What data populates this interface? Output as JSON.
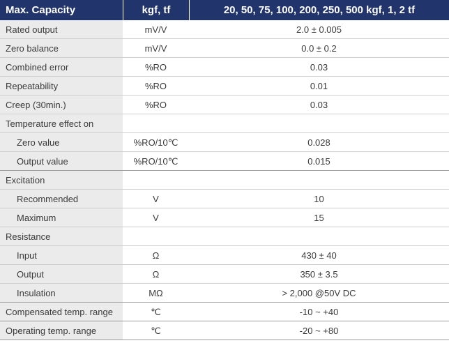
{
  "header": {
    "capacity_label": "Max. Capacity",
    "unit_label": "kgf, tf",
    "capacity_values": "20, 50, 75, 100, 200, 250, 500 kgf, 1, 2 tf"
  },
  "rows": [
    {
      "label": "Rated output",
      "unit": "mV/V",
      "value": "2.0 ± 0.005"
    },
    {
      "label": "Zero balance",
      "unit": "mV/V",
      "value": "0.0 ± 0.2"
    },
    {
      "label": "Combined error",
      "unit": "%RO",
      "value": "0.03"
    },
    {
      "label": "Repeatability",
      "unit": "%RO",
      "value": "0.01"
    },
    {
      "label": "Creep (30min.)",
      "unit": "%RO",
      "value": "0.03"
    },
    {
      "label": "Temperature effect on",
      "unit": "",
      "value": ""
    },
    {
      "label": "Zero value",
      "unit": "%RO/10℃",
      "value": "0.028"
    },
    {
      "label": "Output  value",
      "unit": "%RO/10℃",
      "value": "0.015"
    },
    {
      "label": "Excitation",
      "unit": "",
      "value": ""
    },
    {
      "label": "Recommended",
      "unit": "V",
      "value": "10"
    },
    {
      "label": "Maximum",
      "unit": "V",
      "value": "15"
    },
    {
      "label": "Resistance",
      "unit": "",
      "value": ""
    },
    {
      "label": "Input",
      "unit": "Ω",
      "value": "430 ± 40"
    },
    {
      "label": "Output",
      "unit": "Ω",
      "value": "350 ± 3.5"
    },
    {
      "label": "Insulation",
      "unit": "MΩ",
      "value": "> 2,000 @50V DC"
    },
    {
      "label": "Compensated temp. range",
      "unit": "℃",
      "value": "-10 ~ +40"
    },
    {
      "label": "Operating temp. range",
      "unit": "℃",
      "value": "-20 ~ +80"
    }
  ],
  "colors": {
    "header_bg": "#21346c",
    "header_text": "#ffffff",
    "label_bg": "#ebebeb",
    "body_text": "#3a3a3a"
  }
}
